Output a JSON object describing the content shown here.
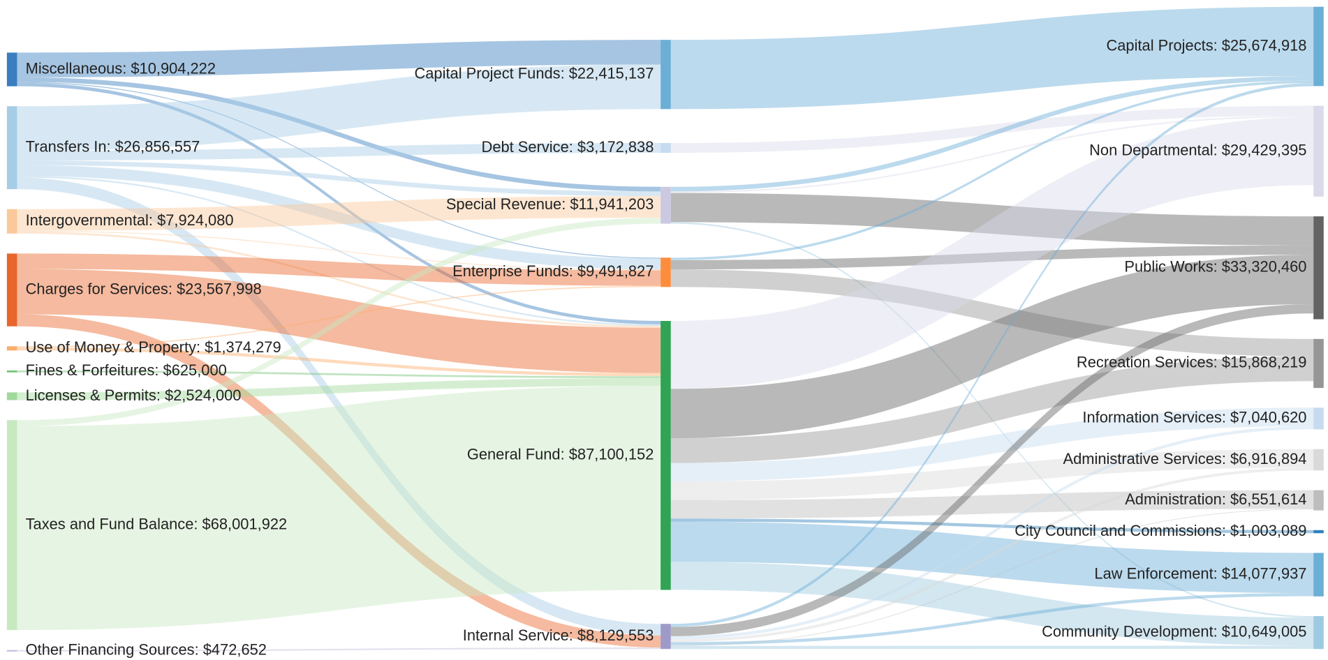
{
  "chart_data": {
    "type": "sankey",
    "nodes": [
      {
        "label": "Miscellaneous: $10,904,222",
        "value": 10904222,
        "color": "#3a7ebf"
      },
      {
        "label": "Transfers In: $26,856,557",
        "value": 26856557,
        "color": "#a6cde6"
      },
      {
        "label": "Intergovernmental: $7,924,080",
        "value": 7924080,
        "color": "#fbc89a"
      },
      {
        "label": "Charges for Services: $23,567,998",
        "value": 23567998,
        "color": "#e8662b"
      },
      {
        "label": "Use of Money & Property: $1,374,279",
        "value": 1374279,
        "color": "#fdae6b"
      },
      {
        "label": "Fines & Forfeitures: $625,000",
        "value": 625000,
        "color": "#74c476"
      },
      {
        "label": "Licenses & Permits: $2,524,000",
        "value": 2524000,
        "color": "#a1d99b"
      },
      {
        "label": "Taxes and Fund Balance: $68,001,922",
        "value": 68001922,
        "color": "#c7e9c0"
      },
      {
        "label": "Other Financing Sources: $472,652",
        "value": 472652,
        "color": "#bcbddc"
      },
      {
        "label": "Capital Project Funds: $22,415,137",
        "value": 22415137,
        "color": "#6baed6"
      },
      {
        "label": "Debt Service: $3,172,838",
        "value": 3172838,
        "color": "#c6dbef"
      },
      {
        "label": "Special Revenue: $11,941,203",
        "value": 11941203,
        "color": "#cbc9e2"
      },
      {
        "label": "Enterprise Funds: $9,491,827",
        "value": 9491827,
        "color": "#fd8d3c"
      },
      {
        "label": "General Fund: $87,100,152",
        "value": 87100152,
        "color": "#31a354"
      },
      {
        "label": "Internal Service: $8,129,553",
        "value": 8129553,
        "color": "#9e9ac8"
      },
      {
        "label": "Capital Projects: $25,674,918",
        "value": 25674918,
        "color": "#6baed6"
      },
      {
        "label": "Non Departmental: $29,429,395",
        "value": 29429395,
        "color": "#dadaeb"
      },
      {
        "label": "Public Works: $33,320,460",
        "value": 33320460,
        "color": "#636363"
      },
      {
        "label": "Recreation Services: $15,868,219",
        "value": 15868219,
        "color": "#969696"
      },
      {
        "label": "Information Services: $7,040,620",
        "value": 7040620,
        "color": "#c6dbef"
      },
      {
        "label": "Administrative Services: $6,916,894",
        "value": 6916894,
        "color": "#d9d9d9"
      },
      {
        "label": "Administration: $6,551,614",
        "value": 6551614,
        "color": "#bdbdbd"
      },
      {
        "label": "City Council and Commissions: $1,003,089",
        "value": 1003089,
        "color": "#3182bd"
      },
      {
        "label": "Law Enforcement: $14,077,937",
        "value": 14077937,
        "color": "#6baed6"
      },
      {
        "label": "Community Development: $10,649,005",
        "value": 10649005,
        "color": "#9ecae1"
      }
    ],
    "columns": [
      [
        0,
        1,
        2,
        3,
        4,
        5,
        6,
        7,
        8
      ],
      [
        9,
        10,
        11,
        12,
        13,
        14
      ],
      [
        15,
        16,
        17,
        18,
        19,
        20,
        21,
        22,
        23,
        24
      ]
    ],
    "links": [
      {
        "source": 0,
        "target": 9,
        "value": 8000000
      },
      {
        "source": 0,
        "target": 11,
        "value": 1500000
      },
      {
        "source": 0,
        "target": 12,
        "value": 300000
      },
      {
        "source": 0,
        "target": 13,
        "value": 1100000
      },
      {
        "source": 1,
        "target": 9,
        "value": 14400000
      },
      {
        "source": 1,
        "target": 10,
        "value": 3170000
      },
      {
        "source": 1,
        "target": 11,
        "value": 1500000
      },
      {
        "source": 1,
        "target": 12,
        "value": 3520000
      },
      {
        "source": 1,
        "target": 13,
        "value": 500000
      },
      {
        "source": 1,
        "target": 14,
        "value": 3770000
      },
      {
        "source": 2,
        "target": 11,
        "value": 7000000
      },
      {
        "source": 2,
        "target": 12,
        "value": 300000
      },
      {
        "source": 2,
        "target": 13,
        "value": 620000
      },
      {
        "source": 3,
        "target": 12,
        "value": 5000000
      },
      {
        "source": 3,
        "target": 13,
        "value": 14680000
      },
      {
        "source": 3,
        "target": 14,
        "value": 3890000
      },
      {
        "source": 4,
        "target": 12,
        "value": 370000
      },
      {
        "source": 4,
        "target": 13,
        "value": 1000000
      },
      {
        "source": 5,
        "target": 13,
        "value": 625000
      },
      {
        "source": 6,
        "target": 13,
        "value": 2524000
      },
      {
        "source": 7,
        "target": 11,
        "value": 1940000
      },
      {
        "source": 7,
        "target": 13,
        "value": 66060000
      },
      {
        "source": 8,
        "target": 14,
        "value": 473000
      },
      {
        "source": 9,
        "target": 15,
        "value": 22420000
      },
      {
        "source": 10,
        "target": 16,
        "value": 3170000
      },
      {
        "source": 11,
        "target": 15,
        "value": 1500000
      },
      {
        "source": 11,
        "target": 16,
        "value": 500000
      },
      {
        "source": 11,
        "target": 17,
        "value": 9440000
      },
      {
        "source": 11,
        "target": 24,
        "value": 500000
      },
      {
        "source": 12,
        "target": 15,
        "value": 800000
      },
      {
        "source": 12,
        "target": 17,
        "value": 3000000
      },
      {
        "source": 12,
        "target": 18,
        "value": 5690000
      },
      {
        "source": 13,
        "target": 16,
        "value": 22000000
      },
      {
        "source": 13,
        "target": 17,
        "value": 16000000
      },
      {
        "source": 13,
        "target": 18,
        "value": 8000000
      },
      {
        "source": 13,
        "target": 19,
        "value": 6000000
      },
      {
        "source": 13,
        "target": 20,
        "value": 6000000
      },
      {
        "source": 13,
        "target": 21,
        "value": 6000000
      },
      {
        "source": 13,
        "target": 22,
        "value": 1000000
      },
      {
        "source": 13,
        "target": 23,
        "value": 13000000
      },
      {
        "source": 13,
        "target": 24,
        "value": 9100000
      },
      {
        "source": 14,
        "target": 15,
        "value": 1000000
      },
      {
        "source": 14,
        "target": 17,
        "value": 3000000
      },
      {
        "source": 14,
        "target": 19,
        "value": 1000000
      },
      {
        "source": 14,
        "target": 20,
        "value": 900000
      },
      {
        "source": 14,
        "target": 23,
        "value": 1000000
      },
      {
        "source": 14,
        "target": 21,
        "value": 230000
      },
      {
        "source": 14,
        "target": 24,
        "value": 1000000
      }
    ]
  }
}
